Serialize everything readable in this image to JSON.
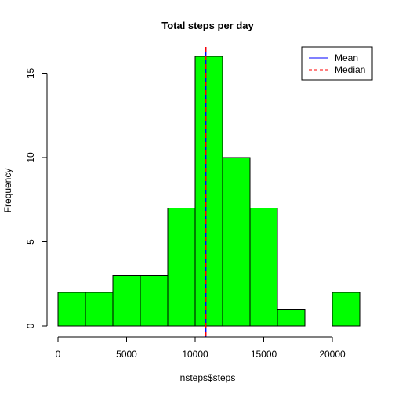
{
  "chart_data": {
    "type": "bar",
    "title": "Total steps per day",
    "xlabel": "nsteps$steps",
    "ylabel": "Frequency",
    "bins": [
      {
        "from": 0,
        "to": 2000,
        "count": 2
      },
      {
        "from": 2000,
        "to": 4000,
        "count": 2
      },
      {
        "from": 4000,
        "to": 6000,
        "count": 3
      },
      {
        "from": 6000,
        "to": 8000,
        "count": 3
      },
      {
        "from": 8000,
        "to": 10000,
        "count": 7
      },
      {
        "from": 10000,
        "to": 12000,
        "count": 16
      },
      {
        "from": 12000,
        "to": 14000,
        "count": 10
      },
      {
        "from": 14000,
        "to": 16000,
        "count": 7
      },
      {
        "from": 16000,
        "to": 18000,
        "count": 1
      },
      {
        "from": 18000,
        "to": 20000,
        "count": 0
      },
      {
        "from": 20000,
        "to": 22000,
        "count": 2
      }
    ],
    "xlim": [
      0,
      22000
    ],
    "ylim": [
      0,
      16
    ],
    "x_ticks": [
      0,
      5000,
      10000,
      15000,
      20000
    ],
    "y_ticks": [
      0,
      5,
      10,
      15
    ],
    "bar_color": "#00ff00",
    "bar_border_color": "#000000",
    "reference_lines": [
      {
        "name": "Mean",
        "value": 10766,
        "color": "#0000ff",
        "style": "solid"
      },
      {
        "name": "Median",
        "value": 10766,
        "color": "#ff0000",
        "style": "dashed"
      }
    ],
    "legend": {
      "position": "top-right",
      "entries": [
        "Mean",
        "Median"
      ]
    },
    "grid": false
  }
}
